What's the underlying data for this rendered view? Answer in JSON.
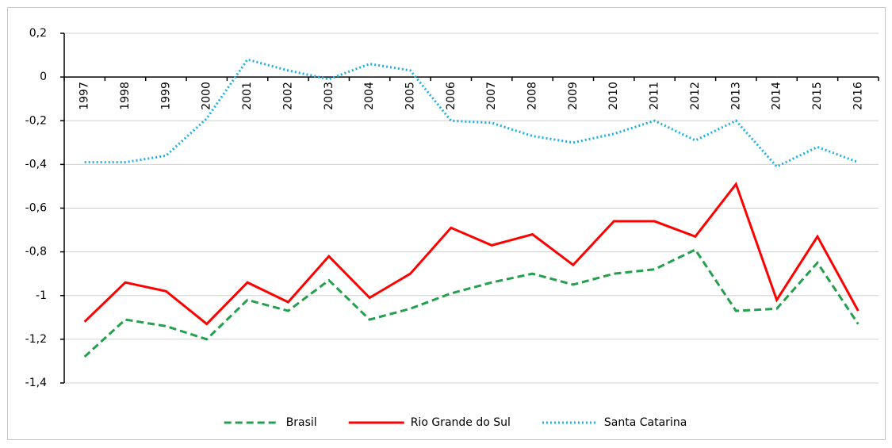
{
  "chart_data": {
    "type": "line",
    "categories": [
      "1997",
      "1998",
      "1999",
      "2000",
      "2001",
      "2002",
      "2003",
      "2004",
      "2005",
      "2006",
      "2007",
      "2008",
      "2009",
      "2010",
      "2011",
      "2012",
      "2013",
      "2014",
      "2015",
      "2016"
    ],
    "series": [
      {
        "name": "Brasil",
        "color": "#22a04b",
        "dash": "dashed",
        "values": [
          -1.28,
          -1.11,
          -1.14,
          -1.2,
          -1.02,
          -1.07,
          -0.93,
          -1.11,
          -1.06,
          -0.99,
          -0.94,
          -0.9,
          -0.95,
          -0.9,
          -0.88,
          -0.79,
          -1.07,
          -1.06,
          -0.85,
          -1.13
        ]
      },
      {
        "name": "Rio Grande do Sul",
        "color": "#ff0000",
        "dash": "solid",
        "values": [
          -1.12,
          -0.94,
          -0.98,
          -1.13,
          -0.94,
          -1.03,
          -0.82,
          -1.01,
          -0.9,
          -0.69,
          -0.77,
          -0.72,
          -0.86,
          -0.66,
          -0.66,
          -0.73,
          -0.49,
          -1.02,
          -0.73,
          -1.07
        ]
      },
      {
        "name": "Santa Catarina",
        "color": "#1cb0e6",
        "dash": "dotted",
        "values": [
          -0.39,
          -0.39,
          -0.36,
          -0.19,
          0.08,
          0.03,
          -0.01,
          0.06,
          0.03,
          -0.2,
          -0.21,
          -0.27,
          -0.3,
          -0.26,
          -0.2,
          -0.29,
          -0.2,
          -0.41,
          -0.32,
          -0.39
        ]
      }
    ],
    "ylim": [
      -1.4,
      0.2
    ],
    "yticks": [
      {
        "value": 0.2,
        "label": "0,2"
      },
      0,
      {
        "value": -0.2,
        "label": "-0,2"
      },
      {
        "value": -0.4,
        "label": "-0,4"
      },
      {
        "value": -0.6,
        "label": "-0,6"
      },
      {
        "value": -0.8,
        "label": "-0,8"
      },
      -1,
      {
        "value": -1.2,
        "label": "-1,2"
      },
      {
        "value": -1.4,
        "label": "-1,4"
      }
    ],
    "grid": true,
    "legend": "bottom"
  }
}
